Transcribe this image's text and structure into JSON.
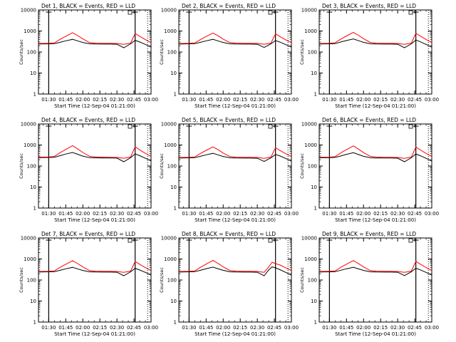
{
  "colors": {
    "events": "#000000",
    "lld": "#ff0000",
    "background": "#ffffff"
  },
  "chart_data": [
    {
      "type": "line",
      "title": "Det 1, BLACK = Events, RED = LLD",
      "xlabel": "Start Time (12-Sep-04 01:21:00)",
      "ylabel": "Counts/sec",
      "yscale": "log",
      "ylim": [
        1,
        10000
      ],
      "xlim": [
        81,
        180
      ],
      "x_tick_labels": [
        "01:30",
        "01:45",
        "02:00",
        "02:15",
        "02:30",
        "02:45",
        "03:00"
      ],
      "y_tick_labels": [
        "1",
        "10",
        "100",
        "1000",
        "10000"
      ],
      "vlines_solid": [
        90,
        166
      ],
      "vlines_dotted": [
        177
      ],
      "series": [
        {
          "name": "BLACK = Events",
          "x": [
            81,
            90,
            95,
            100,
            105,
            111,
            116,
            120,
            126,
            131,
            138,
            144,
            150,
            156,
            162,
            166,
            170,
            175,
            180
          ],
          "y": [
            240,
            245,
            250,
            290,
            340,
            400,
            330,
            285,
            245,
            240,
            238,
            238,
            235,
            160,
            245,
            360,
            300,
            230,
            170
          ]
        },
        {
          "name": "RED = LLD",
          "x": [
            81,
            90,
            95,
            100,
            105,
            111,
            116,
            120,
            126,
            131,
            138,
            144,
            150,
            156,
            162,
            166,
            170,
            175,
            180
          ],
          "y": [
            255,
            260,
            270,
            400,
            560,
            830,
            580,
            420,
            280,
            265,
            260,
            260,
            255,
            230,
            265,
            760,
            560,
            390,
            280
          ]
        }
      ]
    },
    {
      "type": "line",
      "title": "Det 2, BLACK = Events, RED = LLD",
      "xlabel": "Start Time (12-Sep-04 01:21:00)",
      "ylabel": "Counts/sec",
      "yscale": "log",
      "ylim": [
        1,
        10000
      ],
      "xlim": [
        81,
        180
      ],
      "x_tick_labels": [
        "01:30",
        "01:45",
        "02:00",
        "02:15",
        "02:30",
        "02:45",
        "03:00"
      ],
      "y_tick_labels": [
        "1",
        "10",
        "100",
        "1000",
        "10000"
      ],
      "vlines_solid": [
        90,
        166
      ],
      "vlines_dotted": [
        177
      ],
      "series": [
        {
          "name": "BLACK = Events",
          "x": [
            81,
            90,
            95,
            100,
            105,
            111,
            116,
            120,
            126,
            131,
            138,
            144,
            150,
            156,
            162,
            166,
            170,
            175,
            180
          ],
          "y": [
            240,
            245,
            250,
            290,
            340,
            400,
            330,
            285,
            245,
            240,
            238,
            238,
            235,
            165,
            245,
            350,
            295,
            225,
            170
          ]
        },
        {
          "name": "RED = LLD",
          "x": [
            81,
            90,
            95,
            100,
            105,
            111,
            116,
            120,
            126,
            131,
            138,
            144,
            150,
            156,
            162,
            166,
            170,
            175,
            180
          ],
          "y": [
            255,
            260,
            270,
            390,
            550,
            800,
            570,
            410,
            280,
            265,
            260,
            260,
            255,
            235,
            265,
            740,
            540,
            380,
            280
          ]
        }
      ]
    },
    {
      "type": "line",
      "title": "Det 3, BLACK = Events, RED = LLD",
      "xlabel": "Start Time (12-Sep-04 01:21:00)",
      "ylabel": "Counts/sec",
      "yscale": "log",
      "ylim": [
        1,
        10000
      ],
      "xlim": [
        81,
        180
      ],
      "x_tick_labels": [
        "01:30",
        "01:45",
        "02:00",
        "02:15",
        "02:30",
        "02:45",
        "03:00"
      ],
      "y_tick_labels": [
        "1",
        "10",
        "100",
        "1000",
        "10000"
      ],
      "vlines_solid": [
        90,
        166
      ],
      "vlines_dotted": [
        177
      ],
      "series": [
        {
          "name": "BLACK = Events",
          "x": [
            81,
            90,
            95,
            100,
            105,
            111,
            116,
            120,
            126,
            131,
            138,
            144,
            150,
            156,
            162,
            166,
            170,
            175,
            180
          ],
          "y": [
            240,
            245,
            250,
            300,
            350,
            420,
            340,
            290,
            245,
            240,
            238,
            238,
            235,
            160,
            245,
            370,
            305,
            230,
            170
          ]
        },
        {
          "name": "RED = LLD",
          "x": [
            81,
            90,
            95,
            100,
            105,
            111,
            116,
            120,
            126,
            131,
            138,
            144,
            150,
            156,
            162,
            166,
            170,
            175,
            180
          ],
          "y": [
            255,
            260,
            275,
            410,
            580,
            860,
            600,
            430,
            285,
            265,
            260,
            260,
            255,
            230,
            265,
            780,
            570,
            395,
            285
          ]
        }
      ]
    },
    {
      "type": "line",
      "title": "Det 4, BLACK = Events, RED = LLD",
      "xlabel": "Start Time (12-Sep-04 01:21:00)",
      "ylabel": "Counts/sec",
      "yscale": "log",
      "ylim": [
        1,
        10000
      ],
      "xlim": [
        81,
        180
      ],
      "x_tick_labels": [
        "01:30",
        "01:45",
        "02:00",
        "02:15",
        "02:30",
        "02:45",
        "03:00"
      ],
      "y_tick_labels": [
        "1",
        "10",
        "100",
        "1000",
        "10000"
      ],
      "vlines_solid": [
        90,
        166
      ],
      "vlines_dotted": [
        177
      ],
      "series": [
        {
          "name": "BLACK = Events",
          "x": [
            81,
            90,
            95,
            100,
            105,
            111,
            116,
            120,
            126,
            131,
            138,
            144,
            150,
            156,
            162,
            166,
            170,
            175,
            180
          ],
          "y": [
            250,
            255,
            260,
            310,
            370,
            440,
            350,
            295,
            250,
            245,
            242,
            240,
            238,
            160,
            250,
            380,
            310,
            235,
            175
          ]
        },
        {
          "name": "RED = LLD",
          "x": [
            81,
            90,
            95,
            100,
            105,
            111,
            116,
            120,
            126,
            131,
            138,
            144,
            150,
            156,
            162,
            166,
            170,
            175,
            180
          ],
          "y": [
            265,
            270,
            285,
            430,
            610,
            930,
            620,
            440,
            290,
            270,
            265,
            262,
            258,
            235,
            270,
            820,
            590,
            400,
            290
          ]
        }
      ]
    },
    {
      "type": "line",
      "title": "Det 5, BLACK = Events, RED = LLD",
      "xlabel": "Start Time (12-Sep-04 01:21:00)",
      "ylabel": "Counts/sec",
      "yscale": "log",
      "ylim": [
        1,
        10000
      ],
      "xlim": [
        81,
        180
      ],
      "x_tick_labels": [
        "01:30",
        "01:45",
        "02:00",
        "02:15",
        "02:30",
        "02:45",
        "03:00"
      ],
      "y_tick_labels": [
        "1",
        "10",
        "100",
        "1000",
        "10000"
      ],
      "vlines_solid": [
        90,
        166
      ],
      "vlines_dotted": [
        177
      ],
      "series": [
        {
          "name": "BLACK = Events",
          "x": [
            81,
            90,
            95,
            100,
            105,
            111,
            116,
            120,
            126,
            131,
            138,
            144,
            150,
            156,
            162,
            166,
            170,
            175,
            180
          ],
          "y": [
            240,
            245,
            250,
            290,
            340,
            400,
            330,
            285,
            245,
            240,
            238,
            238,
            235,
            165,
            245,
            355,
            300,
            228,
            170
          ]
        },
        {
          "name": "RED = LLD",
          "x": [
            81,
            90,
            95,
            100,
            105,
            111,
            116,
            120,
            126,
            131,
            138,
            144,
            150,
            156,
            162,
            166,
            170,
            175,
            180
          ],
          "y": [
            255,
            260,
            270,
            395,
            555,
            810,
            575,
            415,
            280,
            265,
            260,
            260,
            255,
            232,
            265,
            750,
            545,
            385,
            280
          ]
        }
      ]
    },
    {
      "type": "line",
      "title": "Det 6, BLACK = Events, RED = LLD",
      "xlabel": "Start Time (12-Sep-04 01:21:00)",
      "ylabel": "Counts/sec",
      "yscale": "log",
      "ylim": [
        1,
        10000
      ],
      "xlim": [
        81,
        180
      ],
      "x_tick_labels": [
        "01:30",
        "01:45",
        "02:00",
        "02:15",
        "02:30",
        "02:45",
        "03:00"
      ],
      "y_tick_labels": [
        "1",
        "10",
        "100",
        "1000",
        "10000"
      ],
      "vlines_solid": [
        90,
        166
      ],
      "vlines_dotted": [
        177
      ],
      "series": [
        {
          "name": "BLACK = Events",
          "x": [
            81,
            90,
            95,
            100,
            105,
            111,
            116,
            120,
            126,
            131,
            138,
            144,
            150,
            156,
            162,
            166,
            170,
            175,
            180
          ],
          "y": [
            245,
            250,
            255,
            300,
            360,
            430,
            345,
            290,
            248,
            242,
            240,
            240,
            236,
            160,
            248,
            375,
            308,
            232,
            172
          ]
        },
        {
          "name": "RED = LLD",
          "x": [
            81,
            90,
            95,
            100,
            105,
            111,
            116,
            120,
            126,
            131,
            138,
            144,
            150,
            156,
            162,
            166,
            170,
            175,
            180
          ],
          "y": [
            260,
            265,
            280,
            420,
            600,
            900,
            610,
            435,
            288,
            268,
            262,
            262,
            256,
            232,
            268,
            800,
            580,
            398,
            288
          ]
        }
      ]
    },
    {
      "type": "line",
      "title": "Det 7, BLACK = Events, RED = LLD",
      "xlabel": "Start Time (12-Sep-04 01:21:00)",
      "ylabel": "Counts/sec",
      "yscale": "log",
      "ylim": [
        1,
        10000
      ],
      "xlim": [
        81,
        180
      ],
      "x_tick_labels": [
        "01:30",
        "01:45",
        "02:00",
        "02:15",
        "02:30",
        "02:45",
        "03:00"
      ],
      "y_tick_labels": [
        "1",
        "10",
        "100",
        "1000",
        "10000"
      ],
      "vlines_solid": [
        90,
        166
      ],
      "vlines_dotted": [
        177
      ],
      "series": [
        {
          "name": "BLACK = Events",
          "x": [
            81,
            90,
            95,
            100,
            105,
            111,
            116,
            120,
            126,
            131,
            138,
            144,
            150,
            156,
            162,
            166,
            170,
            175,
            180
          ],
          "y": [
            240,
            245,
            250,
            290,
            340,
            400,
            330,
            285,
            245,
            240,
            238,
            238,
            235,
            160,
            245,
            360,
            300,
            230,
            170
          ]
        },
        {
          "name": "RED = LLD",
          "x": [
            81,
            90,
            95,
            100,
            105,
            111,
            116,
            120,
            126,
            131,
            138,
            144,
            150,
            156,
            162,
            166,
            170,
            175,
            180
          ],
          "y": [
            255,
            260,
            270,
            400,
            560,
            830,
            580,
            420,
            280,
            265,
            260,
            260,
            255,
            230,
            265,
            760,
            560,
            390,
            280
          ]
        }
      ]
    },
    {
      "type": "line",
      "title": "Det 8, BLACK = Events, RED = LLD",
      "xlabel": "Start Time (12-Sep-04 01:21:00)",
      "ylabel": "Counts/sec",
      "yscale": "log",
      "ylim": [
        1,
        10000
      ],
      "xlim": [
        81,
        180
      ],
      "x_tick_labels": [
        "01:30",
        "01:45",
        "02:00",
        "02:15",
        "02:30",
        "02:45",
        "03:00"
      ],
      "y_tick_labels": [
        "1",
        "10",
        "100",
        "1000",
        "10000"
      ],
      "vlines_solid": [
        90,
        166
      ],
      "vlines_dotted": [
        177
      ],
      "series": [
        {
          "name": "BLACK = Events",
          "x": [
            81,
            90,
            95,
            100,
            105,
            111,
            116,
            120,
            126,
            131,
            138,
            144,
            150,
            156,
            160,
            163,
            166,
            170,
            175,
            180
          ],
          "y": [
            240,
            245,
            250,
            290,
            345,
            410,
            335,
            288,
            246,
            240,
            238,
            238,
            235,
            160,
            300,
            420,
            380,
            310,
            230,
            170
          ]
        },
        {
          "name": "RED = LLD",
          "x": [
            81,
            90,
            95,
            100,
            105,
            111,
            116,
            120,
            126,
            131,
            138,
            144,
            150,
            156,
            160,
            163,
            166,
            170,
            175,
            180
          ],
          "y": [
            255,
            260,
            270,
            400,
            570,
            860,
            590,
            425,
            282,
            266,
            260,
            260,
            255,
            232,
            420,
            700,
            600,
            520,
            380,
            280
          ]
        }
      ]
    },
    {
      "type": "line",
      "title": "Det 9, BLACK = Events, RED = LLD",
      "xlabel": "Start Time (12-Sep-04 01:21:00)",
      "ylabel": "Counts/sec",
      "yscale": "log",
      "ylim": [
        1,
        10000
      ],
      "xlim": [
        81,
        180
      ],
      "x_tick_labels": [
        "01:30",
        "01:45",
        "02:00",
        "02:15",
        "02:30",
        "02:45",
        "03:00"
      ],
      "y_tick_labels": [
        "1",
        "10",
        "100",
        "1000",
        "10000"
      ],
      "vlines_solid": [
        90,
        166
      ],
      "vlines_dotted": [
        177
      ],
      "series": [
        {
          "name": "BLACK = Events",
          "x": [
            81,
            90,
            95,
            100,
            105,
            111,
            116,
            120,
            126,
            131,
            138,
            144,
            150,
            156,
            162,
            166,
            170,
            175,
            180
          ],
          "y": [
            240,
            245,
            250,
            292,
            342,
            405,
            332,
            286,
            245,
            240,
            238,
            238,
            235,
            162,
            245,
            362,
            302,
            230,
            170
          ]
        },
        {
          "name": "RED = LLD",
          "x": [
            81,
            90,
            95,
            100,
            105,
            111,
            116,
            120,
            126,
            131,
            138,
            144,
            150,
            156,
            162,
            166,
            170,
            175,
            180
          ],
          "y": [
            255,
            260,
            270,
            402,
            565,
            840,
            585,
            422,
            281,
            265,
            260,
            260,
            255,
            231,
            265,
            770,
            565,
            392,
            282
          ]
        }
      ]
    }
  ]
}
